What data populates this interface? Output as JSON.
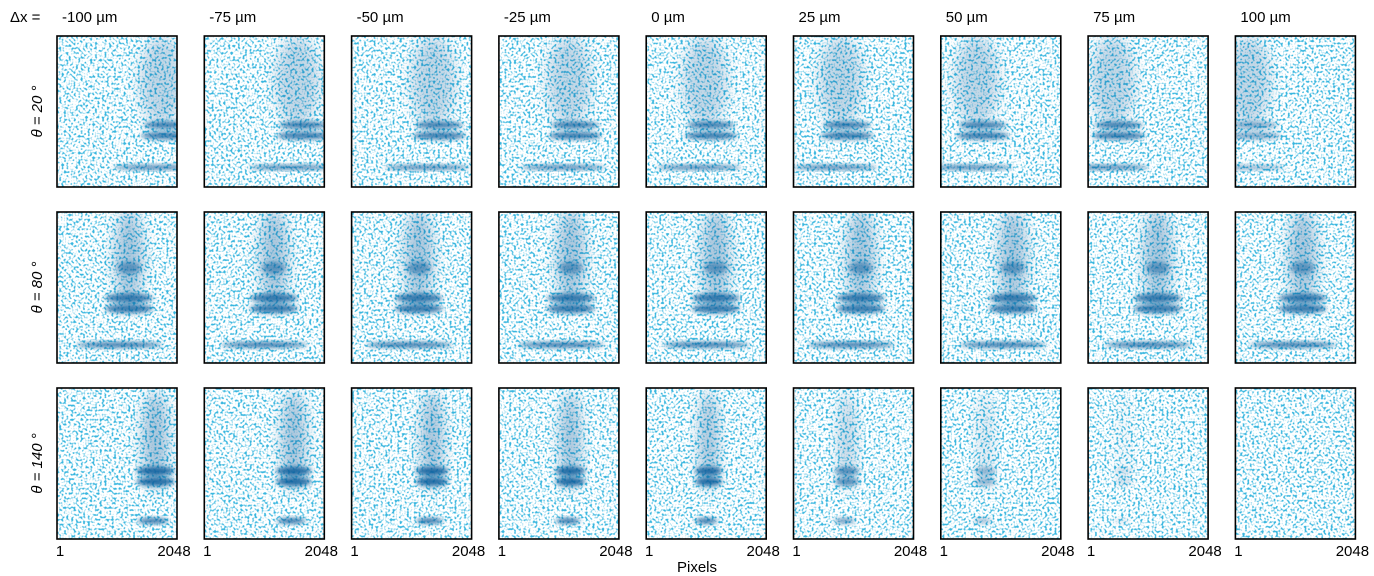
{
  "header": {
    "dx_label": "Δx =",
    "columns": [
      "-100 µm",
      "-75 µm",
      "-50 µm",
      "-25 µm",
      "0 µm",
      "25 µm",
      "50 µm",
      "75 µm",
      "100 µm"
    ]
  },
  "rows": [
    {
      "label": "θ = 20 °"
    },
    {
      "label": "θ = 80 °"
    },
    {
      "label": "θ = 140 °"
    }
  ],
  "axis": {
    "x_ticks": [
      "1",
      "2048"
    ],
    "x_label": "Pixels"
  }
}
